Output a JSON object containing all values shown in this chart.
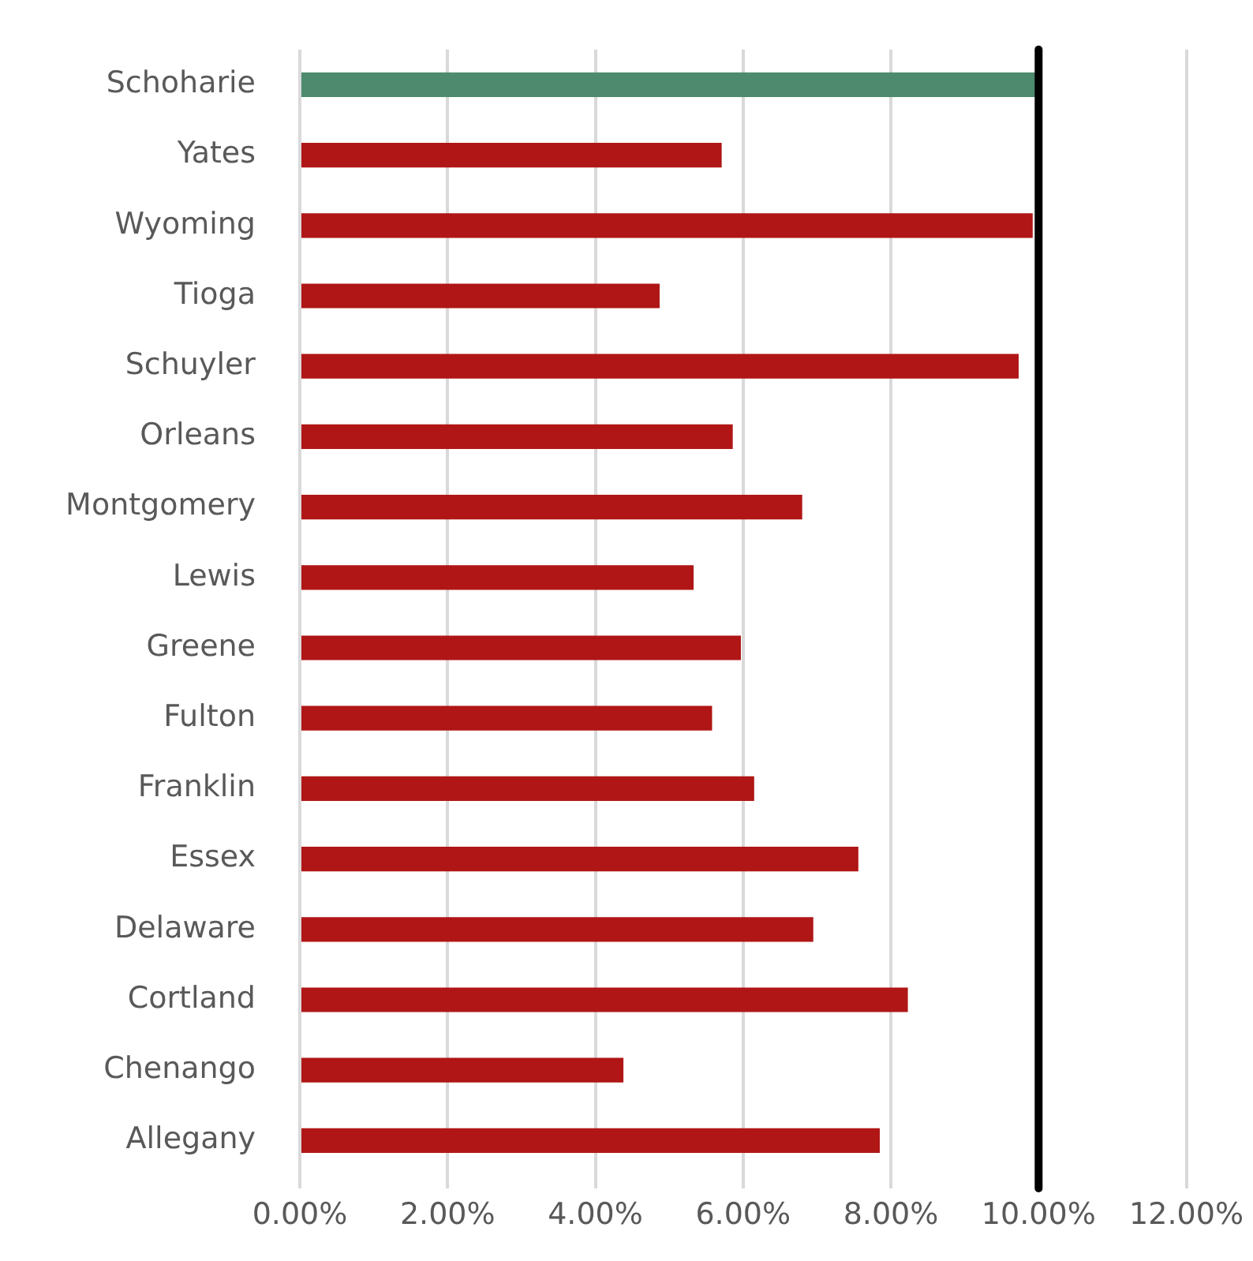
{
  "chart_data": {
    "type": "bar",
    "orientation": "horizontal",
    "categories": [
      "Schoharie",
      "Yates",
      "Wyoming",
      "Tioga",
      "Schuyler",
      "Orleans",
      "Montgomery",
      "Lewis",
      "Greene",
      "Fulton",
      "Franklin",
      "Essex",
      "Delaware",
      "Cortland",
      "Chenango",
      "Allegany"
    ],
    "values": [
      10.0,
      5.71,
      9.92,
      4.87,
      9.73,
      5.86,
      6.8,
      5.33,
      5.97,
      5.58,
      6.15,
      7.56,
      6.95,
      8.23,
      4.38,
      7.85
    ],
    "colors": [
      "#4d8a6e",
      "#b01616",
      "#b01616",
      "#b01616",
      "#b01616",
      "#b01616",
      "#b01616",
      "#b01616",
      "#b01616",
      "#b01616",
      "#b01616",
      "#b01616",
      "#b01616",
      "#b01616",
      "#b01616",
      "#b01616"
    ],
    "xlim": [
      0,
      12
    ],
    "xticks": [
      {
        "value": 0,
        "label": "0.00%"
      },
      {
        "value": 2,
        "label": "2.00%"
      },
      {
        "value": 4,
        "label": "4.00%"
      },
      {
        "value": 6,
        "label": "6.00%"
      },
      {
        "value": 8,
        "label": "8.00%"
      },
      {
        "value": 10,
        "label": "10.00%"
      },
      {
        "value": 12,
        "label": "12.00%"
      }
    ],
    "ref_lines": [
      {
        "axis": "x",
        "value": 10,
        "color": "#000000"
      }
    ],
    "grid": "x",
    "legend": false
  }
}
